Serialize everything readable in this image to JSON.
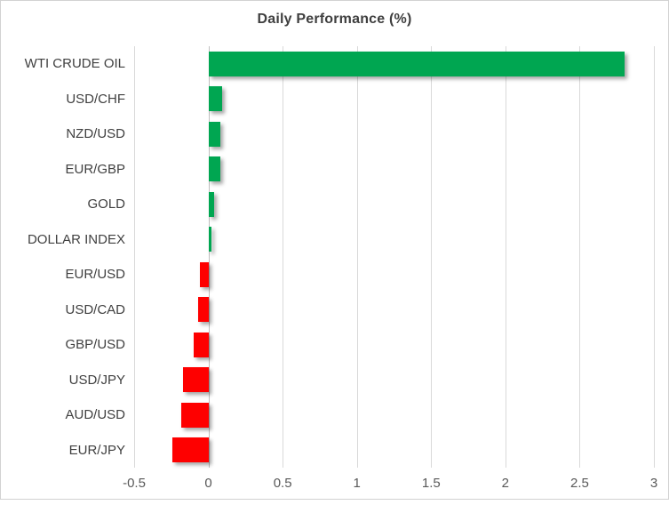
{
  "chart_data": {
    "type": "bar",
    "orientation": "horizontal",
    "title": "Daily Performance (%)",
    "categories": [
      "WTI CRUDE OIL",
      "USD/CHF",
      "NZD/USD",
      "EUR/GBP",
      "GOLD",
      "DOLLAR INDEX",
      "EUR/USD",
      "USD/CAD",
      "GBP/USD",
      "USD/JPY",
      "AUD/USD",
      "EUR/JPY"
    ],
    "values": [
      2.8,
      0.09,
      0.08,
      0.08,
      0.04,
      0.02,
      -0.06,
      -0.07,
      -0.1,
      -0.17,
      -0.18,
      -0.24
    ],
    "xlim": [
      -0.5,
      3
    ],
    "xticks": [
      -0.5,
      0,
      0.5,
      1,
      1.5,
      2,
      2.5,
      3
    ],
    "xtick_labels": [
      "-0.5",
      "0",
      "0.5",
      "1",
      "1.5",
      "2",
      "2.5",
      "3"
    ],
    "xlabel": "",
    "ylabel": "",
    "grid": true,
    "legend_position": "none",
    "positive_color": "#00a651",
    "negative_color": "#fe0000",
    "gridline_color": "#d9d9d9",
    "zero_line_color": "#bfbfbf",
    "title_color": "#3f3f3f",
    "label_color": "#404040",
    "tick_color": "#595959"
  }
}
